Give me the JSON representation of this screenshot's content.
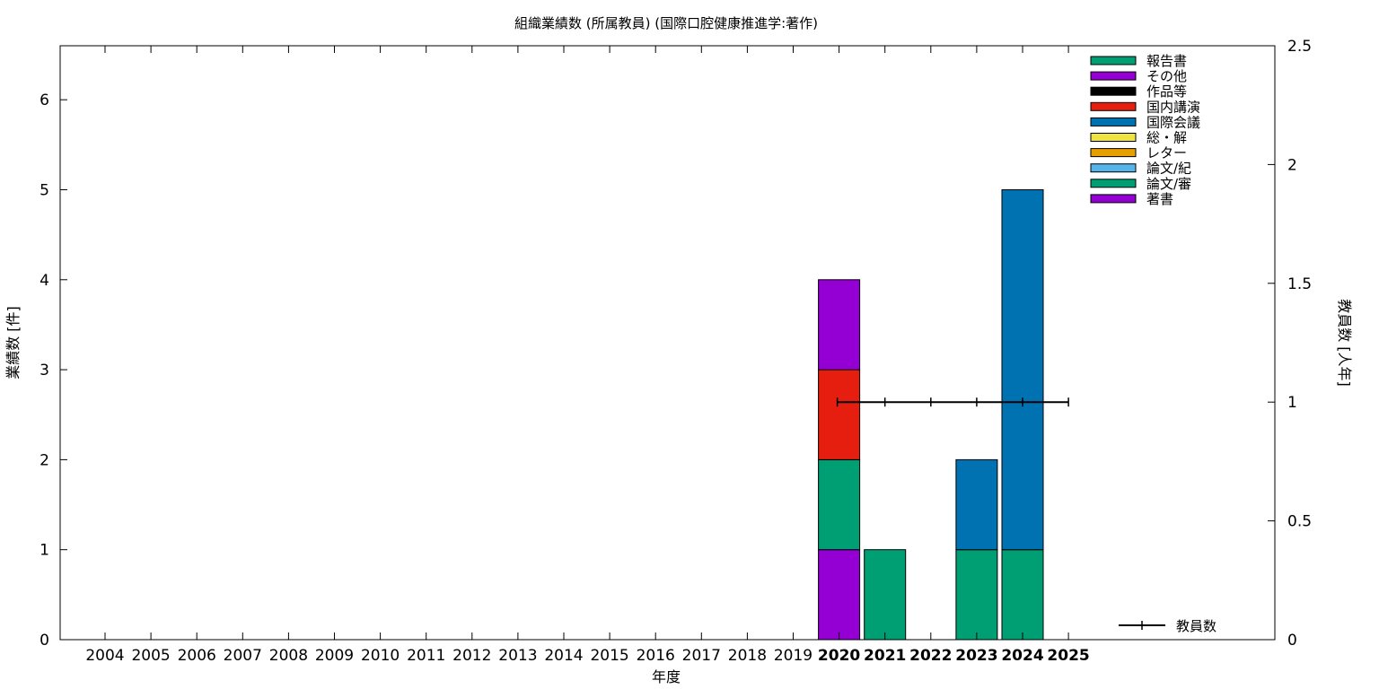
{
  "chart_data": {
    "type": "bar",
    "stacked": true,
    "title": "組織業績数 (所属教員) (国際口腔健康推進学:著作)",
    "xlabel": "年度",
    "ylabel": "業績数 [件]",
    "y2label": "教員数 [人年]",
    "ylim": [
      0,
      6.6
    ],
    "y2lim": [
      0,
      2.5
    ],
    "yticks": [
      "0",
      "1",
      "2",
      "3",
      "4",
      "5",
      "6"
    ],
    "y2ticks": [
      "0",
      "0.5",
      "1",
      "1.5",
      "2",
      "2.5"
    ],
    "grid": false,
    "legend_position": "top-right",
    "categories": [
      "2004",
      "2005",
      "2006",
      "2007",
      "2008",
      "2009",
      "2010",
      "2011",
      "2012",
      "2013",
      "2014",
      "2015",
      "2016",
      "2017",
      "2018",
      "2019",
      "2020",
      "2021",
      "2022",
      "2023",
      "2024",
      "2025"
    ],
    "bold_categories": [
      "2020",
      "2021",
      "2022",
      "2023",
      "2024",
      "2025"
    ],
    "series": [
      {
        "name": "著書",
        "color": "#9400d3",
        "values": [
          0,
          0,
          0,
          0,
          0,
          0,
          0,
          0,
          0,
          0,
          0,
          0,
          0,
          0,
          0,
          0,
          1,
          0,
          0,
          0,
          0,
          0
        ]
      },
      {
        "name": "論文/審",
        "color": "#009e73",
        "values": [
          0,
          0,
          0,
          0,
          0,
          0,
          0,
          0,
          0,
          0,
          0,
          0,
          0,
          0,
          0,
          0,
          1,
          1,
          0,
          1,
          1,
          0
        ]
      },
      {
        "name": "論文/紀",
        "color": "#56b4e9",
        "values": [
          0,
          0,
          0,
          0,
          0,
          0,
          0,
          0,
          0,
          0,
          0,
          0,
          0,
          0,
          0,
          0,
          0,
          0,
          0,
          0,
          0,
          0
        ]
      },
      {
        "name": "レター",
        "color": "#e69f00",
        "values": [
          0,
          0,
          0,
          0,
          0,
          0,
          0,
          0,
          0,
          0,
          0,
          0,
          0,
          0,
          0,
          0,
          0,
          0,
          0,
          0,
          0,
          0
        ]
      },
      {
        "name": "総・解",
        "color": "#f0e442",
        "values": [
          0,
          0,
          0,
          0,
          0,
          0,
          0,
          0,
          0,
          0,
          0,
          0,
          0,
          0,
          0,
          0,
          0,
          0,
          0,
          0,
          0,
          0
        ]
      },
      {
        "name": "国際会議",
        "color": "#0072b2",
        "values": [
          0,
          0,
          0,
          0,
          0,
          0,
          0,
          0,
          0,
          0,
          0,
          0,
          0,
          0,
          0,
          0,
          0,
          0,
          0,
          1,
          4,
          0
        ]
      },
      {
        "name": "国内講演",
        "color": "#e51e10",
        "values": [
          0,
          0,
          0,
          0,
          0,
          0,
          0,
          0,
          0,
          0,
          0,
          0,
          0,
          0,
          0,
          0,
          1,
          0,
          0,
          0,
          0,
          0
        ]
      },
      {
        "name": "作品等",
        "color": "#000000",
        "values": [
          0,
          0,
          0,
          0,
          0,
          0,
          0,
          0,
          0,
          0,
          0,
          0,
          0,
          0,
          0,
          0,
          0,
          0,
          0,
          0,
          0,
          0
        ]
      },
      {
        "name": "その他",
        "color": "#9400d3",
        "values": [
          0,
          0,
          0,
          0,
          0,
          0,
          0,
          0,
          0,
          0,
          0,
          0,
          0,
          0,
          0,
          0,
          1,
          0,
          0,
          0,
          0,
          0
        ]
      },
      {
        "name": "報告書",
        "color": "#009e73",
        "values": [
          0,
          0,
          0,
          0,
          0,
          0,
          0,
          0,
          0,
          0,
          0,
          0,
          0,
          0,
          0,
          0,
          0,
          0,
          0,
          0,
          0,
          0
        ]
      }
    ],
    "line_series": {
      "name": "教員数",
      "axis": "y2",
      "color": "#000000",
      "x": [
        "2020",
        "2021",
        "2022",
        "2023",
        "2024",
        "2025"
      ],
      "values": [
        1,
        1,
        1,
        1,
        1,
        1
      ]
    }
  }
}
